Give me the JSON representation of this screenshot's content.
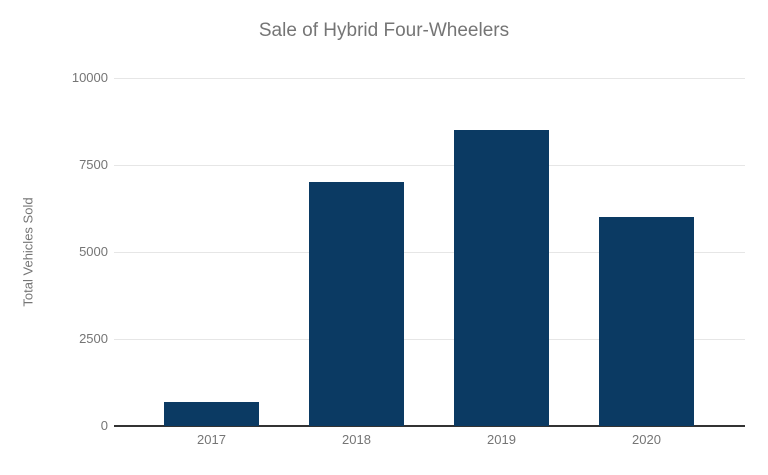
{
  "chart_data": {
    "type": "bar",
    "title": "Sale of Hybrid Four-Wheelers",
    "xlabel": "",
    "ylabel": "Total Vehicles Sold",
    "categories": [
      "2017",
      "2018",
      "2019",
      "2020"
    ],
    "values": [
      700,
      7000,
      8500,
      6000
    ],
    "ylim": [
      0,
      10000
    ],
    "yticks": [
      0,
      2500,
      5000,
      7500,
      10000
    ],
    "grid": "horizontal-on",
    "legend": "none",
    "colors": {
      "bar": "#0b3a63",
      "title_text": "#757575",
      "axis_text": "#757575",
      "gridline": "#e6e6e6",
      "baseline": "#333333",
      "background": "#ffffff"
    }
  }
}
